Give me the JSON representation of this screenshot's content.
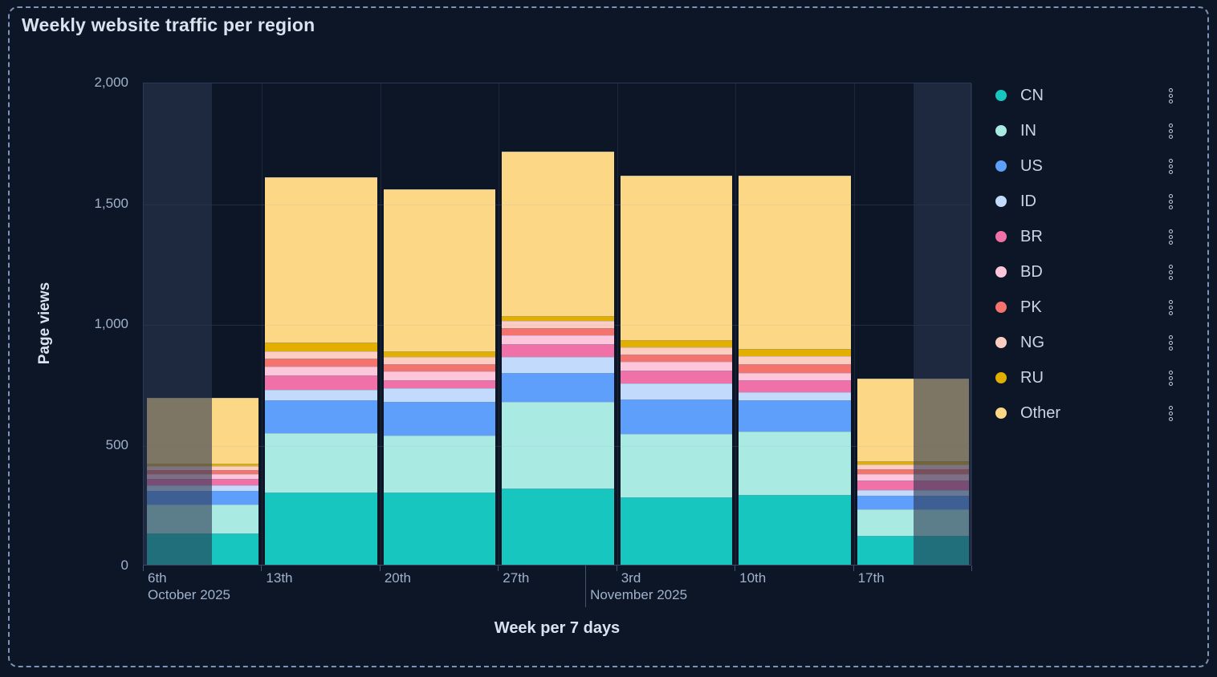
{
  "panel": {
    "title": "Weekly website traffic per region"
  },
  "chart_data": {
    "type": "bar",
    "stacked": true,
    "title": "Weekly website traffic per region",
    "xlabel": "Week per 7 days",
    "ylabel": "Page views",
    "ylim": [
      0,
      2000
    ],
    "grid": true,
    "legend_position": "right",
    "yticks": [
      {
        "value": 0,
        "label": "0"
      },
      {
        "value": 500,
        "label": "500"
      },
      {
        "value": 1000,
        "label": "1,000"
      },
      {
        "value": 1500,
        "label": "1,500"
      },
      {
        "value": 2000,
        "label": "2,000"
      }
    ],
    "categories": [
      "6th",
      "13th",
      "20th",
      "27th",
      "3rd",
      "10th",
      "17th"
    ],
    "month_annotations": [
      {
        "label": "October 2025",
        "x_frac": 0.0,
        "separator_line": false
      },
      {
        "label": "November 2025",
        "x_frac": 0.534,
        "separator_line": true
      }
    ],
    "series": [
      {
        "name": "CN",
        "color": "#17C6BE",
        "values": [
          130,
          300,
          300,
          315,
          280,
          290,
          120
        ]
      },
      {
        "name": "IN",
        "color": "#A9EBE3",
        "values": [
          120,
          245,
          235,
          360,
          260,
          260,
          110
        ]
      },
      {
        "name": "US",
        "color": "#5E9FFB",
        "values": [
          55,
          135,
          140,
          120,
          145,
          130,
          55
        ]
      },
      {
        "name": "ID",
        "color": "#C2DBFD",
        "values": [
          25,
          45,
          55,
          65,
          65,
          35,
          25
        ]
      },
      {
        "name": "BR",
        "color": "#F070A8",
        "values": [
          25,
          60,
          35,
          55,
          55,
          50,
          40
        ]
      },
      {
        "name": "BD",
        "color": "#FDC6DA",
        "values": [
          20,
          35,
          35,
          35,
          35,
          30,
          25
        ]
      },
      {
        "name": "PK",
        "color": "#F4736C",
        "values": [
          18,
          35,
          30,
          30,
          30,
          35,
          20
        ]
      },
      {
        "name": "NG",
        "color": "#FECDC2",
        "values": [
          15,
          30,
          30,
          30,
          30,
          35,
          20
        ]
      },
      {
        "name": "RU",
        "color": "#E2AE00",
        "values": [
          12,
          35,
          25,
          20,
          30,
          30,
          15
        ]
      },
      {
        "name": "Other",
        "color": "#FBD786",
        "values": [
          270,
          685,
          670,
          680,
          680,
          715,
          340
        ]
      }
    ],
    "unselected_overlay": {
      "left_end_frac": 0.0824,
      "right_start_frac": 0.9293,
      "color": "rgba(42,53,80,0.6)"
    }
  },
  "colors": {
    "panel_background": "#0D1626",
    "panel_border_dashed": "#7E93B5",
    "plot_border": "#2C3A57",
    "axis_text": "#9FB1CB",
    "heading_text": "#D9E3EF",
    "legend_text": "#C9D5E3",
    "gridline": "rgba(150,168,198,0.16)"
  }
}
